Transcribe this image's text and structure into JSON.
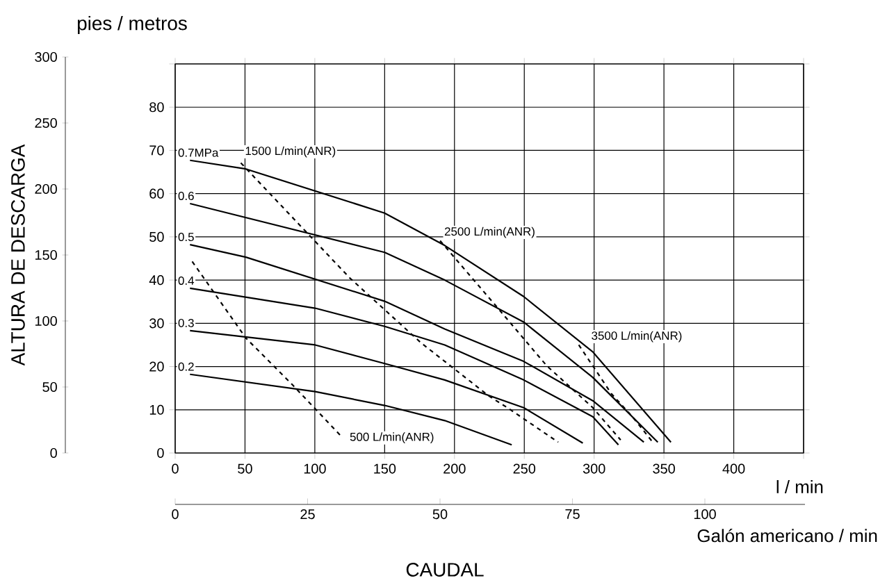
{
  "chart_data": {
    "type": "line",
    "ylabel": "ALTURA DE DESCARGA",
    "xlabel": "l / min",
    "x2label": "Galón americano / min",
    "annotations": [
      "pies / metros",
      "CAUDAL"
    ],
    "xlim": [
      0,
      450
    ],
    "xticks": [
      0,
      50,
      100,
      150,
      200,
      250,
      300,
      350,
      400,
      {
        "value": 450,
        "label": null
      }
    ],
    "ylim": [
      0,
      300
    ],
    "yticks": [
      0,
      50,
      100,
      150,
      200,
      250,
      300
    ],
    "y2lim": [
      0,
      90
    ],
    "y2ticks": [
      0,
      10,
      20,
      30,
      40,
      50,
      60,
      70,
      80,
      {
        "value": 90,
        "label": null
      }
    ],
    "x2lim": [
      0,
      118.9
    ],
    "x2ticks": [
      0,
      25,
      50,
      75,
      100
    ],
    "grid": true,
    "marker": "none",
    "series": [
      {
        "name": "0.7MPa",
        "color": "#000000",
        "axis": "y2",
        "line_style": "solid",
        "x": [
          10.6,
          50.6,
          150,
          193,
          249.5,
          299,
          355
        ],
        "values": [
          67.7,
          65.7,
          55.5,
          48,
          36.2,
          23.4,
          2.5
        ]
      },
      {
        "name": "0.6",
        "color": "#000000",
        "axis": "y2",
        "line_style": "solid",
        "x": [
          10.6,
          150,
          193,
          249.5,
          299,
          345.6
        ],
        "values": [
          57.7,
          46.4,
          40,
          30.3,
          17.5,
          2.5
        ]
      },
      {
        "name": "0.5",
        "color": "#000000",
        "axis": "y2",
        "line_style": "solid",
        "x": [
          10.6,
          50.6,
          150,
          193,
          249.5,
          299,
          335.6
        ],
        "values": [
          48.2,
          45.3,
          35.1,
          28.7,
          21.2,
          12.1,
          2.5
        ]
      },
      {
        "name": "0.4",
        "color": "#000000",
        "axis": "y2",
        "line_style": "solid",
        "x": [
          10.6,
          100.2,
          150,
          193,
          249.5,
          299,
          317.4
        ],
        "values": [
          38.1,
          33.5,
          29.3,
          25,
          16.9,
          8.4,
          1.9
        ]
      },
      {
        "name": "0.3",
        "color": "#000000",
        "axis": "y2",
        "line_style": "solid",
        "x": [
          10.6,
          100.2,
          150,
          193,
          249.5,
          291.9
        ],
        "values": [
          28.3,
          25,
          20.7,
          16.9,
          10.5,
          2.3
        ]
      },
      {
        "name": "0.2",
        "color": "#000000",
        "axis": "y2",
        "line_style": "solid",
        "x": [
          10.6,
          100.2,
          150,
          193,
          241
        ],
        "values": [
          18.2,
          14.2,
          11,
          7.5,
          1.9
        ]
      },
      {
        "name": "500 L/min(ANR)",
        "color": "#000000",
        "axis": "y2",
        "line_style": "dashed",
        "x": [
          12.2,
          50.6,
          83.6,
          120
        ],
        "values": [
          44.3,
          26.6,
          15.9,
          3.5
        ]
      },
      {
        "name": "1500 L/min(ANR)",
        "color": "#000000",
        "axis": "y2",
        "line_style": "dashed",
        "x": [
          47,
          125,
          176,
          193,
          224.6,
          237.8,
          274.3
        ],
        "values": [
          67.1,
          40.5,
          25.5,
          21.2,
          13.2,
          10.5,
          2.5
        ]
      },
      {
        "name": "2500 L/min(ANR)",
        "color": "#000000",
        "axis": "y2",
        "line_style": "dashed",
        "x": [
          189.7,
          229.5,
          266,
          299,
          319
        ],
        "values": [
          49.1,
          34.1,
          20.2,
          10.5,
          3
        ]
      },
      {
        "name": "3500 L/min(ANR)",
        "color": "#000000",
        "axis": "y2",
        "line_style": "dashed",
        "x": [
          289,
          312.4,
          327.4,
          342
        ],
        "values": [
          25,
          13.7,
          8.4,
          2.5
        ]
      }
    ]
  }
}
